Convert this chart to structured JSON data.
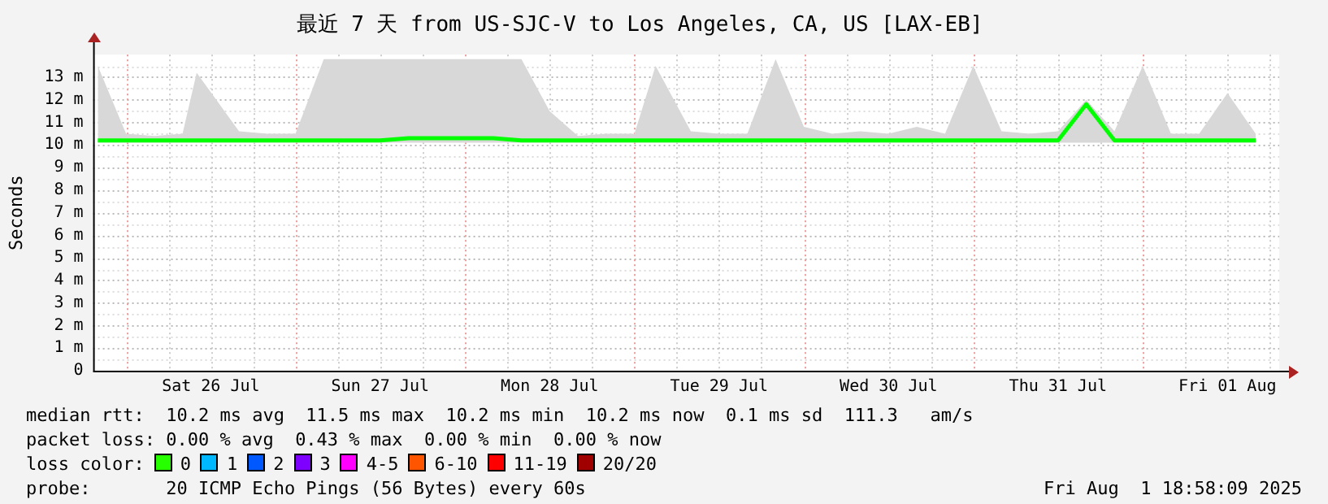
{
  "chart_data": {
    "type": "line",
    "title": "最近 7 天 from US-SJC-V to Los Angeles, CA, US [LAX-EB]",
    "ylabel": "Seconds",
    "x": [
      "2025-07-25T20:00",
      "2025-07-26T00:00",
      "2025-07-26T04:00",
      "2025-07-26T08:00",
      "2025-07-26T10:00",
      "2025-07-26T16:00",
      "2025-07-26T20:00",
      "2025-07-27T00:00",
      "2025-07-27T04:00",
      "2025-07-27T08:00",
      "2025-07-27T12:00",
      "2025-07-27T16:00",
      "2025-07-27T20:00",
      "2025-07-28T00:00",
      "2025-07-28T04:00",
      "2025-07-28T08:00",
      "2025-07-28T12:00",
      "2025-07-28T16:00",
      "2025-07-28T20:00",
      "2025-07-29T00:00",
      "2025-07-29T03:00",
      "2025-07-29T08:00",
      "2025-07-29T12:00",
      "2025-07-29T16:00",
      "2025-07-29T20:00",
      "2025-07-30T00:00",
      "2025-07-30T04:00",
      "2025-07-30T08:00",
      "2025-07-30T12:00",
      "2025-07-30T16:00",
      "2025-07-30T20:00",
      "2025-07-31T00:00",
      "2025-07-31T04:00",
      "2025-07-31T08:00",
      "2025-07-31T12:00",
      "2025-07-31T16:00",
      "2025-07-31T20:00",
      "2025-08-01T00:00",
      "2025-08-01T04:00",
      "2025-08-01T08:00",
      "2025-08-01T12:00",
      "2025-08-01T16:00"
    ],
    "series": [
      {
        "color": "#00ff00",
        "values": [
          10.2,
          10.2,
          10.2,
          10.2,
          10.2,
          10.2,
          10.2,
          10.2,
          10.2,
          10.2,
          10.2,
          10.3,
          10.3,
          10.3,
          10.3,
          10.2,
          10.2,
          10.2,
          10.2,
          10.2,
          10.2,
          10.2,
          10.2,
          10.2,
          10.2,
          10.2,
          10.2,
          10.2,
          10.2,
          10.2,
          10.2,
          10.2,
          10.2,
          10.2,
          10.2,
          11.8,
          10.2,
          10.2,
          10.2,
          10.2,
          10.2,
          10.2
        ],
        "lower": [
          10.1,
          10.1,
          10.1,
          10.1,
          10.1,
          10.1,
          10.1,
          10.1,
          10.1,
          10.1,
          10.1,
          10.1,
          10.1,
          10.1,
          10.1,
          10.1,
          10.1,
          10.1,
          10.1,
          10.1,
          10.1,
          10.1,
          10.1,
          10.1,
          10.1,
          10.1,
          10.1,
          10.1,
          10.1,
          10.1,
          10.1,
          10.1,
          10.1,
          10.1,
          10.1,
          10.1,
          10.1,
          10.1,
          10.1,
          10.1,
          10.1,
          10.1
        ],
        "upper": [
          13.5,
          10.5,
          10.4,
          10.5,
          13.2,
          10.6,
          10.5,
          10.5,
          13.8,
          13.8,
          13.8,
          13.8,
          13.8,
          13.8,
          13.8,
          13.8,
          11.5,
          10.4,
          10.5,
          10.5,
          13.5,
          10.6,
          10.5,
          10.5,
          13.8,
          10.8,
          10.5,
          10.6,
          10.5,
          10.8,
          10.5,
          13.5,
          10.6,
          10.5,
          10.6,
          12.0,
          10.6,
          13.5,
          10.5,
          10.5,
          12.3,
          10.5
        ]
      }
    ],
    "xlim": [
      "2025-07-25T19:20",
      "2025-08-01T19:20"
    ],
    "xticks": [
      {
        "value": "2025-07-26T00:00",
        "label": null
      },
      {
        "value": "2025-07-26T06:00",
        "label": null
      },
      {
        "value": "2025-07-26T12:00",
        "label": "Sat 26 Jul"
      },
      {
        "value": "2025-07-26T18:00",
        "label": null
      },
      {
        "value": "2025-07-27T00:00",
        "label": null
      },
      {
        "value": "2025-07-27T06:00",
        "label": null
      },
      {
        "value": "2025-07-27T12:00",
        "label": "Sun 27 Jul"
      },
      {
        "value": "2025-07-27T18:00",
        "label": null
      },
      {
        "value": "2025-07-28T00:00",
        "label": null
      },
      {
        "value": "2025-07-28T06:00",
        "label": null
      },
      {
        "value": "2025-07-28T12:00",
        "label": "Mon 28 Jul"
      },
      {
        "value": "2025-07-28T18:00",
        "label": null
      },
      {
        "value": "2025-07-29T00:00",
        "label": null
      },
      {
        "value": "2025-07-29T06:00",
        "label": null
      },
      {
        "value": "2025-07-29T12:00",
        "label": "Tue 29 Jul"
      },
      {
        "value": "2025-07-29T18:00",
        "label": null
      },
      {
        "value": "2025-07-30T00:00",
        "label": null
      },
      {
        "value": "2025-07-30T06:00",
        "label": null
      },
      {
        "value": "2025-07-30T12:00",
        "label": "Wed 30 Jul"
      },
      {
        "value": "2025-07-30T18:00",
        "label": null
      },
      {
        "value": "2025-07-31T00:00",
        "label": null
      },
      {
        "value": "2025-07-31T06:00",
        "label": null
      },
      {
        "value": "2025-07-31T12:00",
        "label": "Thu 31 Jul"
      },
      {
        "value": "2025-07-31T18:00",
        "label": null
      },
      {
        "value": "2025-08-01T00:00",
        "label": null
      },
      {
        "value": "2025-08-01T06:00",
        "label": null
      },
      {
        "value": "2025-08-01T12:00",
        "label": "Fri 01 Aug"
      },
      {
        "value": "2025-08-01T18:00",
        "label": null
      }
    ],
    "ylim": [
      0,
      14
    ],
    "yticks": [
      0,
      {
        "value": 0.5,
        "label": null
      },
      {
        "value": 1,
        "label": "1 m"
      },
      {
        "value": 1.5,
        "label": null
      },
      {
        "value": 2,
        "label": "2 m"
      },
      {
        "value": 2.5,
        "label": null
      },
      {
        "value": 3,
        "label": "3 m"
      },
      {
        "value": 3.5,
        "label": null
      },
      {
        "value": 4,
        "label": "4 m"
      },
      {
        "value": 4.5,
        "label": null
      },
      {
        "value": 5,
        "label": "5 m"
      },
      {
        "value": 5.5,
        "label": null
      },
      {
        "value": 6,
        "label": "6 m"
      },
      {
        "value": 6.5,
        "label": null
      },
      {
        "value": 7,
        "label": "7 m"
      },
      {
        "value": 7.5,
        "label": null
      },
      {
        "value": 8,
        "label": "8 m"
      },
      {
        "value": 8.5,
        "label": null
      },
      {
        "value": 9,
        "label": "9 m"
      },
      {
        "value": 9.5,
        "label": null
      },
      {
        "value": 10,
        "label": "10 m"
      },
      {
        "value": 10.5,
        "label": null
      },
      {
        "value": 11,
        "label": "11 m"
      },
      {
        "value": 11.5,
        "label": null
      },
      {
        "value": 12,
        "label": "12 m"
      },
      {
        "value": 12.5,
        "label": null
      },
      {
        "value": 13,
        "label": "13 m"
      },
      {
        "value": 13.5,
        "label": null
      }
    ],
    "grid": true,
    "marker": "none",
    "line_style": "solid",
    "legend": false,
    "annotations": [
      "median rtt:  10.2 ms avg  11.5 ms max  10.2 ms min  10.2 ms now  0.1 ms sd  111.3   am/s",
      "packet loss: 0.00 % avg  0.43 % max  0.00 % min  0.00 % now",
      "loss color:  0  1  2  3  4-5  6-10  11-19  20/20",
      "probe:       20 ICMP Echo Pings (56 Bytes) every 60s",
      "Fri Aug  1 18:58:09 2025"
    ]
  }
}
